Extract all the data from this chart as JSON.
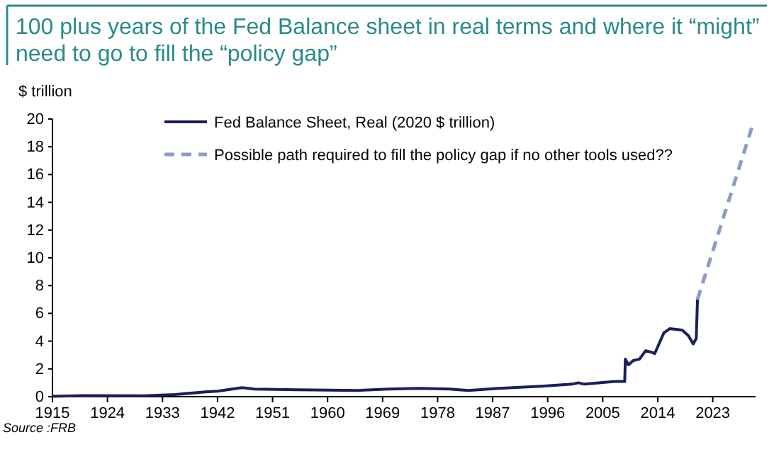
{
  "chart_data": {
    "type": "line",
    "title": "100 plus years of the Fed Balance sheet in real terms and where it “might” need to go to fill the “policy gap”",
    "ylabel": "$ trillion",
    "xlim": [
      1915,
      2030
    ],
    "xticks": [
      1915,
      1924,
      1933,
      1942,
      1951,
      1960,
      1969,
      1978,
      1987,
      1996,
      2005,
      2014,
      2023
    ],
    "ylim": [
      0,
      20
    ],
    "yticks": [
      0,
      2,
      4,
      6,
      8,
      10,
      12,
      14,
      16,
      18,
      20
    ],
    "grid": false,
    "legend": "top",
    "marker": "none",
    "series": [
      {
        "name": "Fed Balance Sheet, Real (2020 $ trillion)",
        "color": "#1a1f5c",
        "line_style": "solid",
        "x": [
          1915,
          1920,
          1930,
          1935,
          1940,
          1942,
          1946,
          1948,
          1955,
          1965,
          1970,
          1975,
          1980,
          1983,
          1988,
          1995,
          2000,
          2001,
          2002,
          2007,
          2008.6,
          2008.7,
          2009.2,
          2010,
          2011,
          2012,
          2013,
          2013.5,
          2014,
          2015,
          2016,
          2018,
          2019,
          2019.8,
          2020.3,
          2020.5
        ],
        "values": [
          0.02,
          0.08,
          0.07,
          0.15,
          0.35,
          0.4,
          0.65,
          0.55,
          0.5,
          0.45,
          0.55,
          0.6,
          0.55,
          0.45,
          0.6,
          0.75,
          0.9,
          1.0,
          0.9,
          1.1,
          1.1,
          2.7,
          2.3,
          2.6,
          2.7,
          3.3,
          3.2,
          3.1,
          3.6,
          4.6,
          4.9,
          4.8,
          4.4,
          3.8,
          4.2,
          7.0
        ]
      },
      {
        "name": "Possible path required to fill the policy gap if no other tools used??",
        "color": "#8a9cc8",
        "line_style": "dashed",
        "x": [
          2020.5,
          2029.4
        ],
        "values": [
          7.0,
          19.4
        ]
      }
    ],
    "annotations": [
      "Source :FRB"
    ]
  }
}
